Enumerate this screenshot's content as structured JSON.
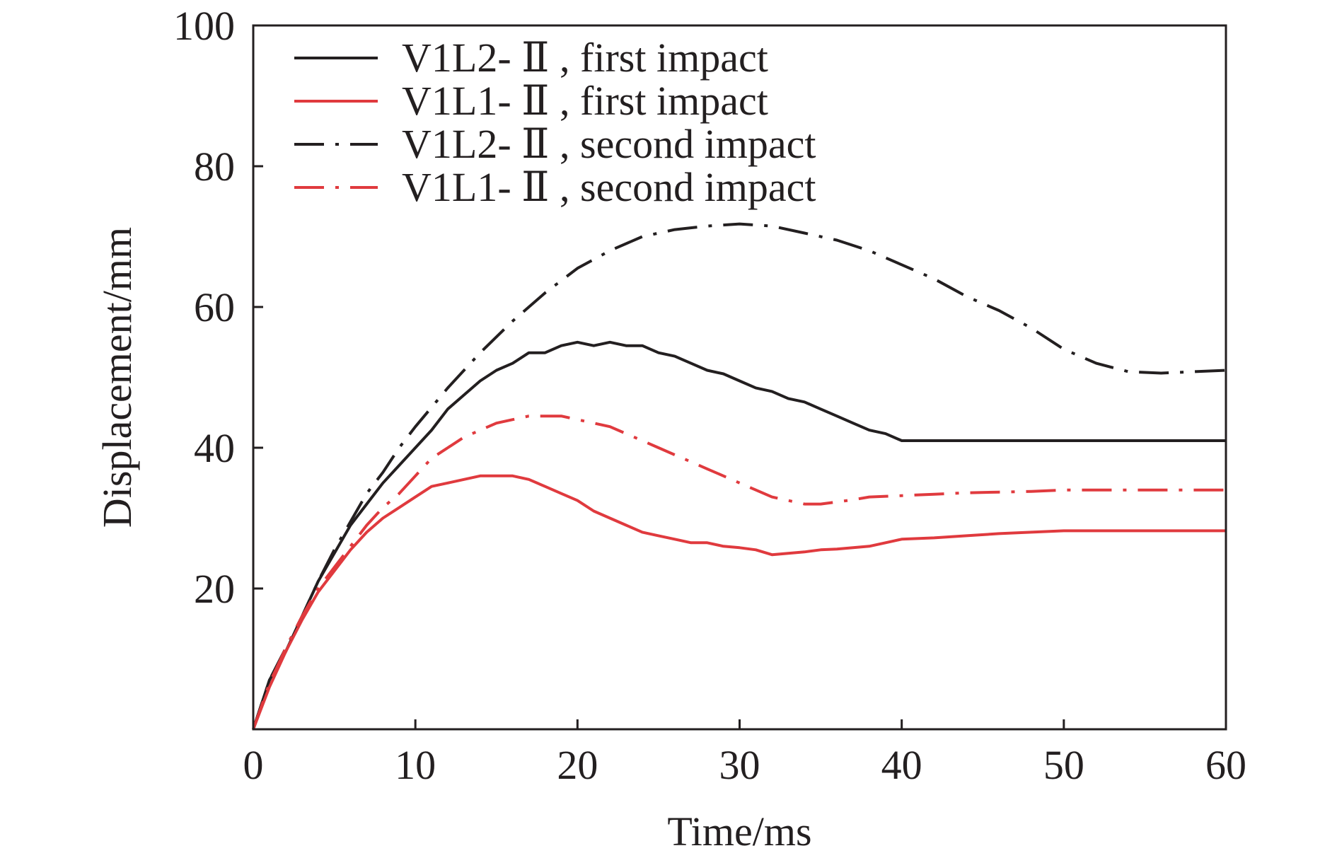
{
  "chart_data": {
    "type": "line",
    "xlabel": "Time/ms",
    "ylabel": "Displacement/mm",
    "xlim": [
      0,
      60
    ],
    "ylim": [
      0,
      100
    ],
    "xticks": [
      0,
      10,
      20,
      30,
      40,
      50,
      60
    ],
    "yticks": [
      20,
      40,
      60,
      80,
      100
    ],
    "x_tick_labels": [
      "0",
      "10",
      "20",
      "30",
      "40",
      "50",
      "60"
    ],
    "y_tick_labels": [
      "20",
      "40",
      "60",
      "80",
      "100"
    ],
    "grid": false,
    "legend_position": "top-left",
    "series": [
      {
        "name": "V1L2- Ⅱ , first impact",
        "color": "#231f20",
        "style": "solid",
        "x": [
          0,
          1,
          2,
          3,
          4,
          5,
          6,
          7,
          8,
          9,
          10,
          11,
          12,
          13,
          14,
          15,
          16,
          17,
          18,
          19,
          20,
          21,
          22,
          23,
          24,
          25,
          26,
          27,
          28,
          29,
          30,
          31,
          32,
          33,
          34,
          35,
          36,
          37,
          38,
          39,
          40,
          45,
          50,
          55,
          60
        ],
        "y": [
          0,
          7,
          11,
          16,
          21,
          25,
          29,
          32,
          35,
          37.5,
          40,
          42.5,
          45.5,
          47.5,
          49.5,
          51,
          52,
          53.5,
          53.5,
          54.5,
          55,
          54.5,
          55,
          54.5,
          54.5,
          53.5,
          53,
          52,
          51,
          50.5,
          49.5,
          48.5,
          48,
          47,
          46.5,
          45.5,
          44.5,
          43.5,
          42.5,
          42,
          41,
          41,
          41,
          41,
          41
        ]
      },
      {
        "name": "V1L1- Ⅱ , first impact",
        "color": "#e03a3e",
        "style": "solid",
        "x": [
          0,
          1,
          2,
          3,
          4,
          5,
          6,
          7,
          8,
          9,
          10,
          11,
          12,
          13,
          14,
          15,
          16,
          17,
          18,
          19,
          20,
          21,
          22,
          23,
          24,
          25,
          26,
          27,
          28,
          29,
          30,
          31,
          32,
          33,
          34,
          35,
          36,
          37,
          38,
          39,
          40,
          42,
          44,
          46,
          48,
          50,
          55,
          60
        ],
        "y": [
          0,
          6,
          11,
          15.5,
          19.5,
          22.5,
          25.5,
          28,
          30,
          31.5,
          33,
          34.5,
          35,
          35.5,
          36,
          36,
          36,
          35.5,
          34.5,
          33.5,
          32.5,
          31,
          30,
          29,
          28,
          27.5,
          27,
          26.5,
          26.5,
          26,
          25.8,
          25.5,
          24.8,
          25,
          25.2,
          25.5,
          25.6,
          25.8,
          26,
          26.5,
          27,
          27.2,
          27.5,
          27.8,
          28,
          28.2,
          28.2,
          28.2
        ]
      },
      {
        "name": "V1L2- Ⅱ , second impact",
        "color": "#231f20",
        "style": "dashdot",
        "x": [
          0,
          1,
          2,
          3,
          4,
          5,
          6,
          7,
          8,
          9,
          10,
          12,
          14,
          16,
          18,
          20,
          22,
          24,
          26,
          28,
          30,
          32,
          34,
          36,
          38,
          40,
          42,
          44,
          46,
          48,
          50,
          52,
          54,
          56,
          58,
          60
        ],
        "y": [
          0,
          7,
          11.5,
          16,
          21,
          25.5,
          29.5,
          33.5,
          36.5,
          40,
          43,
          48.5,
          53.5,
          58,
          62,
          65.5,
          68,
          70,
          71,
          71.5,
          71.8,
          71.5,
          70.5,
          69.5,
          68,
          66,
          64,
          61.5,
          59.5,
          57,
          54,
          52,
          50.8,
          50.6,
          50.8,
          51
        ]
      },
      {
        "name": "V1L1- Ⅱ , second impact",
        "color": "#e03a3e",
        "style": "dashdot",
        "x": [
          0,
          1,
          2,
          3,
          4,
          5,
          6,
          7,
          8,
          9,
          10,
          11,
          12,
          13,
          14,
          15,
          16,
          17,
          18,
          19,
          20,
          21,
          22,
          23,
          24,
          25,
          26,
          27,
          28,
          29,
          30,
          31,
          32,
          33,
          34,
          35,
          36,
          37,
          38,
          40,
          42,
          44,
          46,
          48,
          50,
          55,
          60
        ],
        "y": [
          0,
          6.5,
          11.5,
          16,
          20,
          23,
          26,
          29,
          31.5,
          33.5,
          36,
          38.5,
          40,
          41.5,
          42.5,
          43.5,
          44,
          44.5,
          44.5,
          44.5,
          44,
          43.5,
          43,
          42,
          41,
          40,
          39,
          38,
          37,
          36,
          35,
          34,
          33,
          32.5,
          32,
          32,
          32.3,
          32.6,
          33,
          33.2,
          33.4,
          33.6,
          33.7,
          33.8,
          34,
          34,
          34
        ]
      }
    ]
  }
}
